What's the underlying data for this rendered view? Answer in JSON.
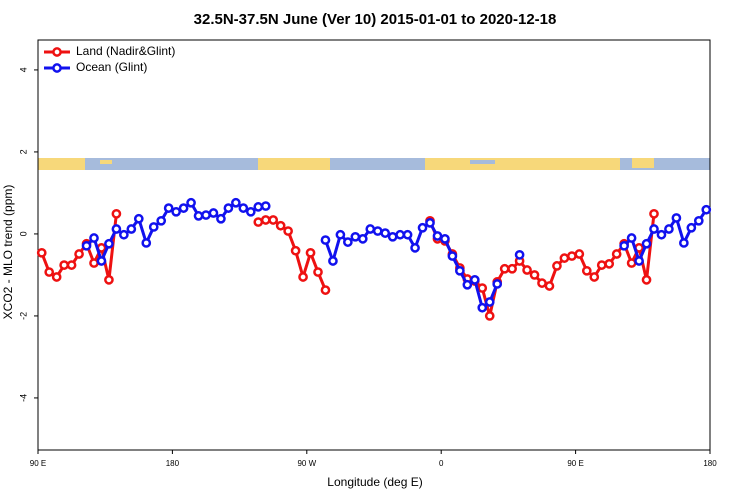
{
  "chart_data": {
    "type": "line",
    "title": "32.5N-37.5N June (Ver 10)   2015-01-01 to 2020-12-18",
    "x_label": "Longitude (deg E)",
    "y_label": "XCO2 - MLO trend (ppm)",
    "xlim": [
      90,
      540
    ],
    "xticks": [
      {
        "value": 90,
        "label": "90 E"
      },
      180,
      {
        "value": 270,
        "label": "90 W"
      },
      {
        "value": 360,
        "label": "0"
      },
      {
        "value": 450,
        "label": "90 E"
      },
      {
        "value": 540,
        "label": "180"
      }
    ],
    "ylim": [
      -5.27,
      4.73
    ],
    "yticks": [
      -4,
      -2,
      0,
      2,
      4
    ],
    "legend": "top-left",
    "x": [
      92.5,
      97.5,
      102.5,
      107.5,
      112.5,
      117.5,
      122.5,
      127.5,
      132.5,
      137.5,
      142.5,
      147.5,
      152.5,
      157.5,
      162.5,
      167.5,
      172.5,
      177.5,
      182.5,
      187.5,
      192.5,
      197.5,
      202.5,
      207.5,
      212.5,
      217.5,
      222.5,
      227.5,
      232.5,
      237.5,
      242.5,
      247.5,
      252.5,
      257.5,
      262.5,
      267.5,
      272.5,
      277.5,
      282.5,
      287.5,
      292.5,
      297.5,
      302.5,
      307.5,
      312.5,
      317.5,
      322.5,
      327.5,
      332.5,
      337.5,
      342.5,
      347.5,
      352.5,
      357.5,
      362.5,
      367.5,
      372.5,
      377.5,
      382.5,
      387.5,
      392.5,
      397.5,
      402.5,
      407.5,
      412.5,
      417.5,
      422.5,
      427.5,
      432.5,
      437.5,
      442.5,
      447.5,
      452.5,
      457.5,
      462.5,
      467.5,
      472.5,
      477.5,
      482.5,
      487.5,
      492.5,
      497.5,
      502.5,
      507.5,
      512.5,
      517.5,
      522.5,
      527.5,
      532.5,
      537.5
    ],
    "series": [
      {
        "name": "Land (Nadir&Glint)",
        "color": "#ee1111",
        "values": [
          -0.46,
          -0.93,
          -1.05,
          -0.76,
          -0.76,
          -0.49,
          -0.24,
          -0.71,
          -0.34,
          -1.12,
          0.49,
          null,
          null,
          null,
          null,
          null,
          null,
          null,
          null,
          null,
          null,
          null,
          null,
          null,
          null,
          null,
          null,
          null,
          null,
          0.29,
          0.34,
          0.34,
          0.2,
          0.07,
          -0.41,
          -1.05,
          -0.46,
          -0.93,
          -1.37,
          null,
          null,
          null,
          null,
          null,
          null,
          null,
          null,
          null,
          null,
          null,
          null,
          null,
          0.32,
          -0.12,
          -0.17,
          -0.49,
          -0.83,
          -1.1,
          -1.15,
          -1.32,
          -2.0,
          -1.17,
          -0.85,
          -0.85,
          -0.66,
          -0.88,
          -1.0,
          -1.2,
          -1.27,
          -0.78,
          -0.59,
          -0.54,
          -0.49,
          -0.9,
          -1.05,
          -0.76,
          -0.73,
          -0.49,
          -0.24,
          -0.71,
          -0.34,
          -1.12,
          0.49,
          null,
          null,
          null,
          null,
          null,
          null,
          null
        ]
      },
      {
        "name": "Ocean (Glint)",
        "color": "#1111ee",
        "values": [
          null,
          null,
          null,
          null,
          null,
          null,
          -0.29,
          -0.1,
          -0.66,
          -0.24,
          0.12,
          -0.02,
          0.12,
          0.37,
          -0.22,
          0.17,
          0.32,
          0.63,
          0.54,
          0.63,
          0.76,
          0.44,
          0.46,
          0.51,
          0.37,
          0.63,
          0.76,
          0.63,
          0.54,
          0.66,
          0.68,
          null,
          null,
          null,
          null,
          null,
          null,
          null,
          -0.15,
          -0.66,
          -0.02,
          -0.2,
          -0.07,
          -0.12,
          0.12,
          0.07,
          0.02,
          -0.07,
          -0.02,
          -0.02,
          -0.34,
          0.15,
          0.27,
          -0.05,
          -0.12,
          -0.54,
          -0.9,
          -1.24,
          -1.12,
          -1.8,
          -1.66,
          -1.22,
          null,
          null,
          -0.51,
          null,
          null,
          null,
          null,
          null,
          null,
          null,
          null,
          null,
          null,
          null,
          null,
          null,
          -0.29,
          -0.1,
          -0.66,
          -0.24,
          0.12,
          -0.02,
          0.12,
          0.39,
          -0.22,
          0.15,
          0.32,
          0.59
        ]
      }
    ]
  }
}
